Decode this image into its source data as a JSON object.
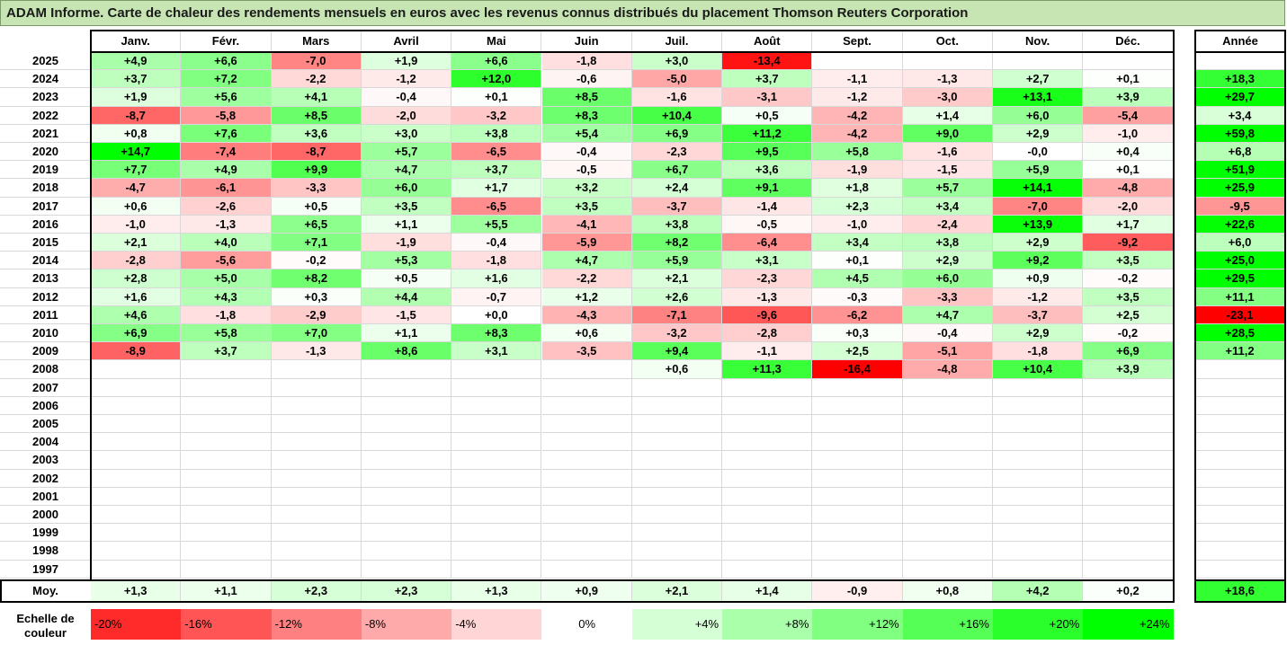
{
  "title": "ADAM Informe. Carte de chaleur des rendements mensuels en euros avec les revenus connus distribués du placement Thomson Reuters Corporation",
  "chart_data": {
    "type": "heatmap",
    "months": [
      "Janv.",
      "Févr.",
      "Mars",
      "Avril",
      "Mai",
      "Juin",
      "Juil.",
      "Août",
      "Sept.",
      "Oct.",
      "Nov.",
      "Déc."
    ],
    "year_header": "Année",
    "avg_label": "Moy.",
    "rows": [
      {
        "year": "2025",
        "values": [
          "+4,9",
          "+6,6",
          "-7,0",
          "+1,9",
          "+6,6",
          "-1,8",
          "+3,0",
          "-13,4",
          "",
          "",
          "",
          ""
        ],
        "annual": ""
      },
      {
        "year": "2024",
        "values": [
          "+3,7",
          "+7,2",
          "-2,2",
          "-1,2",
          "+12,0",
          "-0,6",
          "-5,0",
          "+3,7",
          "-1,1",
          "-1,3",
          "+2,7",
          "+0,1"
        ],
        "annual": "+18,3"
      },
      {
        "year": "2023",
        "values": [
          "+1,9",
          "+5,6",
          "+4,1",
          "-0,4",
          "+0,1",
          "+8,5",
          "-1,6",
          "-3,1",
          "-1,2",
          "-3,0",
          "+13,1",
          "+3,9"
        ],
        "annual": "+29,7"
      },
      {
        "year": "2022",
        "values": [
          "-8,7",
          "-5,8",
          "+8,5",
          "-2,0",
          "-3,2",
          "+8,3",
          "+10,4",
          "+0,5",
          "-4,2",
          "+1,4",
          "+6,0",
          "-5,4"
        ],
        "annual": "+3,4"
      },
      {
        "year": "2021",
        "values": [
          "+0,8",
          "+7,6",
          "+3,6",
          "+3,0",
          "+3,8",
          "+5,4",
          "+6,9",
          "+11,2",
          "-4,2",
          "+9,0",
          "+2,9",
          "-1,0"
        ],
        "annual": "+59,8"
      },
      {
        "year": "2020",
        "values": [
          "+14,7",
          "-7,4",
          "-8,7",
          "+5,7",
          "-6,5",
          "-0,4",
          "-2,3",
          "+9,5",
          "+5,8",
          "-1,6",
          "-0,0",
          "+0,4"
        ],
        "annual": "+6,8"
      },
      {
        "year": "2019",
        "values": [
          "+7,7",
          "+4,9",
          "+9,9",
          "+4,7",
          "+3,7",
          "-0,5",
          "+6,7",
          "+3,6",
          "-1,9",
          "-1,5",
          "+5,9",
          "+0,1"
        ],
        "annual": "+51,9"
      },
      {
        "year": "2018",
        "values": [
          "-4,7",
          "-6,1",
          "-3,3",
          "+6,0",
          "+1,7",
          "+3,2",
          "+2,4",
          "+9,1",
          "+1,8",
          "+5,7",
          "+14,1",
          "-4,8"
        ],
        "annual": "+25,9"
      },
      {
        "year": "2017",
        "values": [
          "+0,6",
          "-2,6",
          "+0,5",
          "+3,5",
          "-6,5",
          "+3,5",
          "-3,7",
          "-1,4",
          "+2,3",
          "+3,4",
          "-7,0",
          "-2,0"
        ],
        "annual": "-9,5"
      },
      {
        "year": "2016",
        "values": [
          "-1,0",
          "-1,3",
          "+6,5",
          "+1,1",
          "+5,5",
          "-4,1",
          "+3,8",
          "-0,5",
          "-1,0",
          "-2,4",
          "+13,9",
          "+1,7"
        ],
        "annual": "+22,6"
      },
      {
        "year": "2015",
        "values": [
          "+2,1",
          "+4,0",
          "+7,1",
          "-1,9",
          "-0,4",
          "-5,9",
          "+8,2",
          "-6,4",
          "+3,4",
          "+3,8",
          "+2,9",
          "-9,2"
        ],
        "annual": "+6,0"
      },
      {
        "year": "2014",
        "values": [
          "-2,8",
          "-5,6",
          "-0,2",
          "+5,3",
          "-1,8",
          "+4,7",
          "+5,9",
          "+3,1",
          "+0,1",
          "+2,9",
          "+9,2",
          "+3,5"
        ],
        "annual": "+25,0"
      },
      {
        "year": "2013",
        "values": [
          "+2,8",
          "+5,0",
          "+8,2",
          "+0,5",
          "+1,6",
          "-2,2",
          "+2,1",
          "-2,3",
          "+4,5",
          "+6,0",
          "+0,9",
          "-0,2"
        ],
        "annual": "+29,5"
      },
      {
        "year": "2012",
        "values": [
          "+1,6",
          "+4,3",
          "+0,3",
          "+4,4",
          "-0,7",
          "+1,2",
          "+2,6",
          "-1,3",
          "-0,3",
          "-3,3",
          "-1,2",
          "+3,5"
        ],
        "annual": "+11,1"
      },
      {
        "year": "2011",
        "values": [
          "+4,6",
          "-1,8",
          "-2,9",
          "-1,5",
          "+0,0",
          "-4,3",
          "-7,1",
          "-9,6",
          "-6,2",
          "+4,7",
          "-3,7",
          "+2,5"
        ],
        "annual": "-23,1"
      },
      {
        "year": "2010",
        "values": [
          "+6,9",
          "+5,8",
          "+7,0",
          "+1,1",
          "+8,3",
          "+0,6",
          "-3,2",
          "-2,8",
          "+0,3",
          "-0,4",
          "+2,9",
          "-0,2"
        ],
        "annual": "+28,5"
      },
      {
        "year": "2009",
        "values": [
          "-8,9",
          "+3,7",
          "-1,3",
          "+8,6",
          "+3,1",
          "-3,5",
          "+9,4",
          "-1,1",
          "+2,5",
          "-5,1",
          "-1,8",
          "+6,9"
        ],
        "annual": "+11,2"
      },
      {
        "year": "2008",
        "values": [
          "",
          "",
          "",
          "",
          "",
          "",
          "+0,6",
          "+11,3",
          "-16,4",
          "-4,8",
          "+10,4",
          "+3,9"
        ],
        "annual": ""
      },
      {
        "year": "2007",
        "values": [
          "",
          "",
          "",
          "",
          "",
          "",
          "",
          "",
          "",
          "",
          "",
          ""
        ],
        "annual": ""
      },
      {
        "year": "2006",
        "values": [
          "",
          "",
          "",
          "",
          "",
          "",
          "",
          "",
          "",
          "",
          "",
          ""
        ],
        "annual": ""
      },
      {
        "year": "2005",
        "values": [
          "",
          "",
          "",
          "",
          "",
          "",
          "",
          "",
          "",
          "",
          "",
          ""
        ],
        "annual": ""
      },
      {
        "year": "2004",
        "values": [
          "",
          "",
          "",
          "",
          "",
          "",
          "",
          "",
          "",
          "",
          "",
          ""
        ],
        "annual": ""
      },
      {
        "year": "2003",
        "values": [
          "",
          "",
          "",
          "",
          "",
          "",
          "",
          "",
          "",
          "",
          "",
          ""
        ],
        "annual": ""
      },
      {
        "year": "2002",
        "values": [
          "",
          "",
          "",
          "",
          "",
          "",
          "",
          "",
          "",
          "",
          "",
          ""
        ],
        "annual": ""
      },
      {
        "year": "2001",
        "values": [
          "",
          "",
          "",
          "",
          "",
          "",
          "",
          "",
          "",
          "",
          "",
          ""
        ],
        "annual": ""
      },
      {
        "year": "2000",
        "values": [
          "",
          "",
          "",
          "",
          "",
          "",
          "",
          "",
          "",
          "",
          "",
          ""
        ],
        "annual": ""
      },
      {
        "year": "1999",
        "values": [
          "",
          "",
          "",
          "",
          "",
          "",
          "",
          "",
          "",
          "",
          "",
          ""
        ],
        "annual": ""
      },
      {
        "year": "1998",
        "values": [
          "",
          "",
          "",
          "",
          "",
          "",
          "",
          "",
          "",
          "",
          "",
          ""
        ],
        "annual": ""
      },
      {
        "year": "1997",
        "values": [
          "",
          "",
          "",
          "",
          "",
          "",
          "",
          "",
          "",
          "",
          "",
          ""
        ],
        "annual": ""
      }
    ],
    "averages": [
      "+1,3",
      "+1,1",
      "+2,3",
      "+2,3",
      "+1,3",
      "+0,9",
      "+2,1",
      "+1,4",
      "-0,9",
      "+0,8",
      "+4,2",
      "+0,2"
    ],
    "average_annual": "+18,6",
    "scale_label": "Echelle de couleur",
    "scale": [
      "-20%",
      "-16%",
      "-12%",
      "-8%",
      "-4%",
      "0%",
      "+4%",
      "+8%",
      "+12%",
      "+16%",
      "+20%",
      "+24%"
    ],
    "colors": {
      "neg_max": "#ff0000",
      "neutral": "#ffffff",
      "pos_max": "#00ff00",
      "title_bg": "#c6e5b3"
    }
  }
}
